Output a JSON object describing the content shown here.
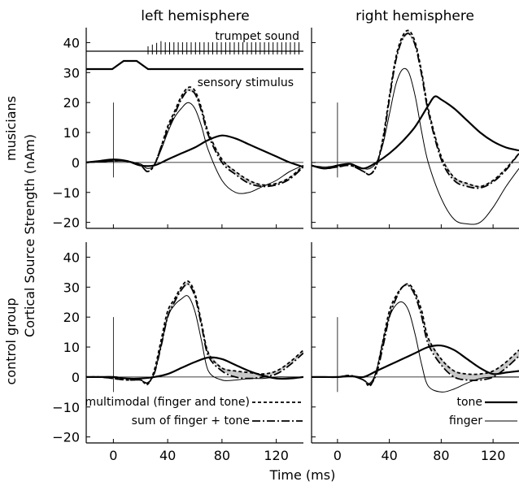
{
  "figure": {
    "column_titles": [
      "left hemisphere",
      "right hemisphere"
    ],
    "row_labels": [
      "musicians",
      "control group"
    ],
    "ylabel": "Cortical Source Strength (nAm)",
    "xlabel": "Time (ms)"
  },
  "stimulus_labels": {
    "trumpet": "trumpet sound",
    "sensory": "sensory stimulus"
  },
  "legend": {
    "multimodal": "multimodal (finger and tone)",
    "sum": "sum of finger + tone",
    "tone": "tone",
    "finger": "finger"
  },
  "chart_data": [
    {
      "type": "line",
      "panel": "musicians-left",
      "xlim": [
        -20,
        140
      ],
      "ylim": [
        -22,
        45
      ],
      "xticks": [
        0,
        40,
        80,
        120
      ],
      "yticks": [
        -20,
        -10,
        0,
        10,
        20,
        30,
        40
      ],
      "series": [
        {
          "name": "multimodal (finger and tone)",
          "x": [
            -20,
            -10,
            0,
            10,
            20,
            25,
            30,
            35,
            40,
            45,
            50,
            55,
            60,
            65,
            70,
            80,
            90,
            100,
            110,
            120,
            130,
            140
          ],
          "y": [
            0,
            0.3,
            0.5,
            0.5,
            -1,
            -3,
            -1,
            5,
            12,
            17,
            22,
            25,
            24,
            18,
            10,
            1,
            -3,
            -6,
            -7.5,
            -7,
            -5,
            -1
          ]
        },
        {
          "name": "sum of finger + tone",
          "x": [
            -20,
            -10,
            0,
            10,
            20,
            25,
            30,
            35,
            40,
            45,
            50,
            55,
            60,
            65,
            70,
            80,
            90,
            100,
            110,
            120,
            130,
            140
          ],
          "y": [
            0,
            0.3,
            0.5,
            0.5,
            -1,
            -3,
            -1,
            5,
            11,
            16,
            21,
            24,
            23,
            17,
            9,
            0,
            -4,
            -7,
            -8,
            -7.5,
            -5.5,
            -1.5
          ]
        },
        {
          "name": "tone",
          "x": [
            -20,
            -10,
            0,
            10,
            20,
            30,
            40,
            50,
            60,
            70,
            80,
            90,
            100,
            110,
            120,
            130,
            140
          ],
          "y": [
            0,
            0.5,
            1,
            0.5,
            -1,
            -1,
            1,
            3,
            5,
            7.5,
            9,
            8,
            6,
            4,
            2,
            0,
            -1.5
          ]
        },
        {
          "name": "finger",
          "x": [
            -20,
            -10,
            0,
            10,
            20,
            25,
            30,
            35,
            40,
            45,
            50,
            55,
            60,
            65,
            70,
            80,
            90,
            100,
            110,
            120,
            130,
            140
          ],
          "y": [
            0,
            0.2,
            0.5,
            0.3,
            -0.5,
            -2,
            -1,
            4,
            10,
            15,
            18,
            20,
            18,
            12,
            4,
            -6,
            -10,
            -10,
            -8,
            -6,
            -3,
            -1
          ]
        }
      ]
    },
    {
      "type": "line",
      "panel": "musicians-right",
      "xlim": [
        -20,
        140
      ],
      "ylim": [
        -22,
        45
      ],
      "xticks": [
        0,
        40,
        80,
        120
      ],
      "yticks": [
        -20,
        -10,
        0,
        10,
        20,
        30,
        40
      ],
      "series": [
        {
          "name": "multimodal (finger and tone)",
          "x": [
            -20,
            -10,
            0,
            10,
            20,
            25,
            30,
            35,
            40,
            45,
            50,
            55,
            60,
            65,
            70,
            80,
            90,
            100,
            110,
            120,
            130,
            140
          ],
          "y": [
            -1,
            -2,
            -1.5,
            -1,
            -3,
            -4,
            -1,
            8,
            22,
            35,
            42,
            44,
            40,
            30,
            18,
            2,
            -5,
            -7,
            -8,
            -6,
            -2,
            3
          ]
        },
        {
          "name": "sum of finger + tone",
          "x": [
            -20,
            -10,
            0,
            10,
            20,
            25,
            30,
            35,
            40,
            45,
            50,
            55,
            60,
            65,
            70,
            80,
            90,
            100,
            110,
            120,
            130,
            140
          ],
          "y": [
            -1,
            -2,
            -1.5,
            -1,
            -3,
            -4,
            -1,
            7,
            21,
            34,
            41,
            43,
            39,
            29,
            17,
            1,
            -6,
            -8,
            -8.5,
            -6.5,
            -2.5,
            3
          ]
        },
        {
          "name": "tone",
          "x": [
            -20,
            -10,
            0,
            10,
            20,
            30,
            40,
            50,
            60,
            70,
            75,
            80,
            90,
            100,
            110,
            120,
            130,
            140
          ],
          "y": [
            -1,
            -2,
            -1,
            -0.5,
            -2,
            0,
            3,
            7,
            12,
            19,
            22,
            21,
            18,
            14,
            10,
            7,
            5,
            4
          ]
        },
        {
          "name": "finger",
          "x": [
            -20,
            -10,
            0,
            10,
            20,
            25,
            30,
            35,
            40,
            45,
            50,
            55,
            60,
            65,
            70,
            80,
            90,
            100,
            110,
            120,
            130,
            140
          ],
          "y": [
            -1,
            -1.5,
            -1,
            -0.5,
            -2,
            -2,
            0,
            6,
            16,
            26,
            31,
            30,
            22,
            10,
            0,
            -12,
            -19,
            -20.5,
            -20,
            -15,
            -8,
            -2
          ]
        }
      ]
    },
    {
      "type": "line",
      "panel": "control-left",
      "xlim": [
        -20,
        140
      ],
      "ylim": [
        -22,
        45
      ],
      "xticks": [
        0,
        40,
        80,
        120
      ],
      "yticks": [
        -20,
        -10,
        0,
        10,
        20,
        30,
        40
      ],
      "series": [
        {
          "name": "multimodal (finger and tone)",
          "x": [
            -20,
            -10,
            0,
            10,
            20,
            25,
            30,
            35,
            40,
            45,
            50,
            55,
            60,
            65,
            70,
            80,
            90,
            100,
            110,
            120,
            130,
            140
          ],
          "y": [
            0,
            0,
            -0.5,
            -1,
            -1,
            -2.5,
            2,
            12,
            22,
            26,
            30,
            32,
            28,
            18,
            8,
            3,
            2,
            1.5,
            1,
            2,
            5,
            9
          ]
        },
        {
          "name": "sum of finger + tone",
          "x": [
            -20,
            -10,
            0,
            10,
            20,
            25,
            30,
            35,
            40,
            45,
            50,
            55,
            60,
            65,
            70,
            80,
            90,
            100,
            110,
            120,
            130,
            140
          ],
          "y": [
            0,
            0,
            -0.5,
            -1,
            -1,
            -2,
            1,
            10,
            20,
            25,
            29,
            31,
            27,
            17,
            7,
            2,
            0,
            -0.5,
            0,
            1,
            4,
            8
          ]
        },
        {
          "name": "tone",
          "x": [
            -20,
            -10,
            0,
            10,
            20,
            30,
            40,
            50,
            60,
            70,
            80,
            90,
            100,
            110,
            120,
            130,
            140
          ],
          "y": [
            0,
            0,
            0,
            -0.5,
            -0.5,
            0,
            1,
            3,
            5,
            6.5,
            6,
            4,
            2,
            0.5,
            -0.5,
            -0.5,
            0
          ]
        },
        {
          "name": "finger",
          "x": [
            -20,
            -10,
            0,
            10,
            20,
            25,
            30,
            35,
            40,
            45,
            50,
            55,
            60,
            65,
            70,
            80,
            90,
            100,
            110,
            120,
            130,
            140
          ],
          "y": [
            0,
            0,
            0,
            -0.5,
            -1,
            -2,
            1,
            10,
            20,
            24,
            26,
            27,
            22,
            12,
            2,
            -1,
            -1,
            -0.5,
            -0.5,
            0,
            0,
            0
          ]
        }
      ]
    },
    {
      "type": "line",
      "panel": "control-right",
      "xlim": [
        -20,
        140
      ],
      "ylim": [
        -22,
        45
      ],
      "xticks": [
        0,
        40,
        80,
        120
      ],
      "yticks": [
        -20,
        -10,
        0,
        10,
        20,
        30,
        40
      ],
      "series": [
        {
          "name": "multimodal (finger and tone)",
          "x": [
            -20,
            -10,
            0,
            10,
            20,
            25,
            30,
            35,
            40,
            45,
            50,
            55,
            60,
            65,
            70,
            80,
            90,
            100,
            110,
            120,
            130,
            140
          ],
          "y": [
            0,
            0,
            0,
            0.5,
            -1,
            -3,
            2,
            12,
            22,
            27,
            30,
            31,
            28,
            22,
            13,
            6,
            2,
            1,
            1,
            2,
            5,
            9
          ]
        },
        {
          "name": "sum of finger + tone",
          "x": [
            -20,
            -10,
            0,
            10,
            20,
            25,
            30,
            35,
            40,
            45,
            50,
            55,
            60,
            65,
            70,
            80,
            90,
            100,
            110,
            120,
            130,
            140
          ],
          "y": [
            0,
            0,
            0,
            0.5,
            -1,
            -2.5,
            1,
            10,
            20,
            26,
            30,
            30.5,
            27,
            20,
            11,
            4,
            0,
            -1,
            -1,
            0,
            3,
            7
          ]
        },
        {
          "name": "tone",
          "x": [
            -20,
            -10,
            0,
            10,
            20,
            30,
            40,
            50,
            60,
            70,
            80,
            90,
            100,
            110,
            120,
            130,
            140
          ],
          "y": [
            0,
            0,
            0,
            0.3,
            0,
            2,
            4,
            6,
            8,
            10,
            10.5,
            9,
            6,
            3,
            1,
            1.5,
            2
          ]
        },
        {
          "name": "finger",
          "x": [
            -20,
            -10,
            0,
            10,
            20,
            25,
            30,
            35,
            40,
            45,
            50,
            55,
            60,
            65,
            70,
            80,
            90,
            100,
            110,
            120,
            130,
            140
          ],
          "y": [
            0,
            0,
            0,
            0.3,
            -1,
            -2,
            2,
            12,
            20,
            24,
            25,
            22,
            14,
            4,
            -3,
            -5,
            -4,
            -2,
            -0.5,
            0,
            0,
            0
          ]
        }
      ]
    }
  ]
}
